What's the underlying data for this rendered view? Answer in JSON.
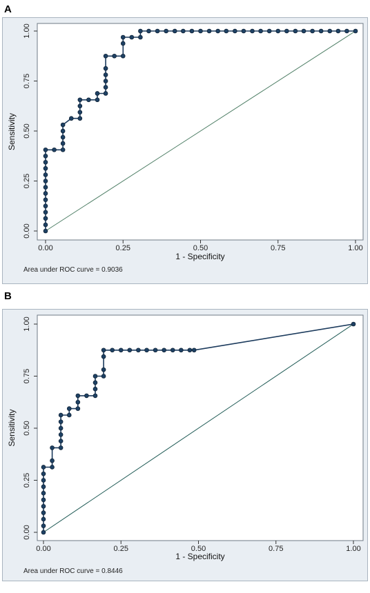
{
  "panels": [
    {
      "letter": "A",
      "note": "Area under ROC curve = 0.9036"
    },
    {
      "letter": "B",
      "note": "Area under ROC curve = 0.8446"
    }
  ],
  "chart_data": [
    {
      "type": "line",
      "xlabel": "1 - Specificity",
      "ylabel": "Sensitivity",
      "xlim": [
        0,
        1
      ],
      "ylim": [
        0,
        1
      ],
      "xticks": [
        "0.00",
        "0.25",
        "0.50",
        "0.75",
        "1.00"
      ],
      "yticks": [
        "0.00",
        "0.25",
        "0.50",
        "0.75",
        "1.00"
      ],
      "reference_line_color": "#4f7f66",
      "curve_color": "#1b3a5c",
      "marker_color": "#1e4164",
      "annotation": "Area under ROC curve = 0.9036",
      "series": [
        {
          "x": [
            0,
            0,
            0,
            0,
            0,
            0,
            0,
            0,
            0,
            0,
            0,
            0,
            0,
            0,
            0.028,
            0.056,
            0.056,
            0.056,
            0.056,
            0.056,
            0.083,
            0.111,
            0.111,
            0.111,
            0.111,
            0.139,
            0.167,
            0.167,
            0.194,
            0.194,
            0.194,
            0.194,
            0.194,
            0.194,
            0.222,
            0.25,
            0.25,
            0.25,
            0.278,
            0.306,
            0.306,
            0.333,
            0.361,
            0.389,
            0.417,
            0.444,
            0.472,
            0.5,
            0.528,
            0.556,
            0.583,
            0.611,
            0.639,
            0.667,
            0.694,
            0.722,
            0.75,
            0.778,
            0.806,
            0.833,
            0.861,
            0.889,
            0.917,
            0.944,
            0.972,
            1.0
          ],
          "y": [
            0,
            0.031,
            0.063,
            0.094,
            0.125,
            0.156,
            0.188,
            0.219,
            0.25,
            0.281,
            0.313,
            0.344,
            0.375,
            0.406,
            0.406,
            0.406,
            0.438,
            0.469,
            0.5,
            0.531,
            0.563,
            0.563,
            0.594,
            0.625,
            0.656,
            0.656,
            0.656,
            0.688,
            0.688,
            0.719,
            0.75,
            0.781,
            0.813,
            0.875,
            0.875,
            0.875,
            0.938,
            0.969,
            0.969,
            0.969,
            1.0,
            1.0,
            1.0,
            1.0,
            1.0,
            1.0,
            1.0,
            1.0,
            1.0,
            1.0,
            1.0,
            1.0,
            1.0,
            1.0,
            1.0,
            1.0,
            1.0,
            1.0,
            1.0,
            1.0,
            1.0,
            1.0,
            1.0,
            1.0,
            1.0,
            1.0
          ]
        }
      ]
    },
    {
      "type": "line",
      "xlabel": "1 - Specificity",
      "ylabel": "Sensitivity",
      "xlim": [
        0,
        1
      ],
      "ylim": [
        0,
        1
      ],
      "xticks": [
        "0.00",
        "0.25",
        "0.50",
        "0.75",
        "1.00"
      ],
      "yticks": [
        "0.00",
        "0.25",
        "0.50",
        "0.75",
        "1.00"
      ],
      "reference_line_color": "#1f5a55",
      "curve_color": "#1b3a5c",
      "marker_color": "#1e4164",
      "annotation": "Area under ROC curve = 0.8446",
      "series": [
        {
          "x": [
            0,
            0,
            0,
            0,
            0,
            0,
            0,
            0,
            0,
            0,
            0,
            0.028,
            0.028,
            0.028,
            0.056,
            0.056,
            0.056,
            0.056,
            0.056,
            0.056,
            0.083,
            0.083,
            0.111,
            0.111,
            0.111,
            0.139,
            0.167,
            0.167,
            0.167,
            0.167,
            0.194,
            0.194,
            0.194,
            0.194,
            0.222,
            0.25,
            0.278,
            0.306,
            0.333,
            0.361,
            0.389,
            0.417,
            0.444,
            0.472,
            0.486,
            1.0
          ],
          "y": [
            0,
            0.031,
            0.063,
            0.094,
            0.125,
            0.156,
            0.188,
            0.219,
            0.25,
            0.281,
            0.313,
            0.313,
            0.344,
            0.406,
            0.406,
            0.438,
            0.469,
            0.5,
            0.531,
            0.563,
            0.563,
            0.594,
            0.594,
            0.625,
            0.656,
            0.656,
            0.656,
            0.688,
            0.719,
            0.75,
            0.75,
            0.781,
            0.844,
            0.875,
            0.875,
            0.875,
            0.875,
            0.875,
            0.875,
            0.875,
            0.875,
            0.875,
            0.875,
            0.875,
            0.875,
            1.0
          ]
        }
      ]
    }
  ]
}
